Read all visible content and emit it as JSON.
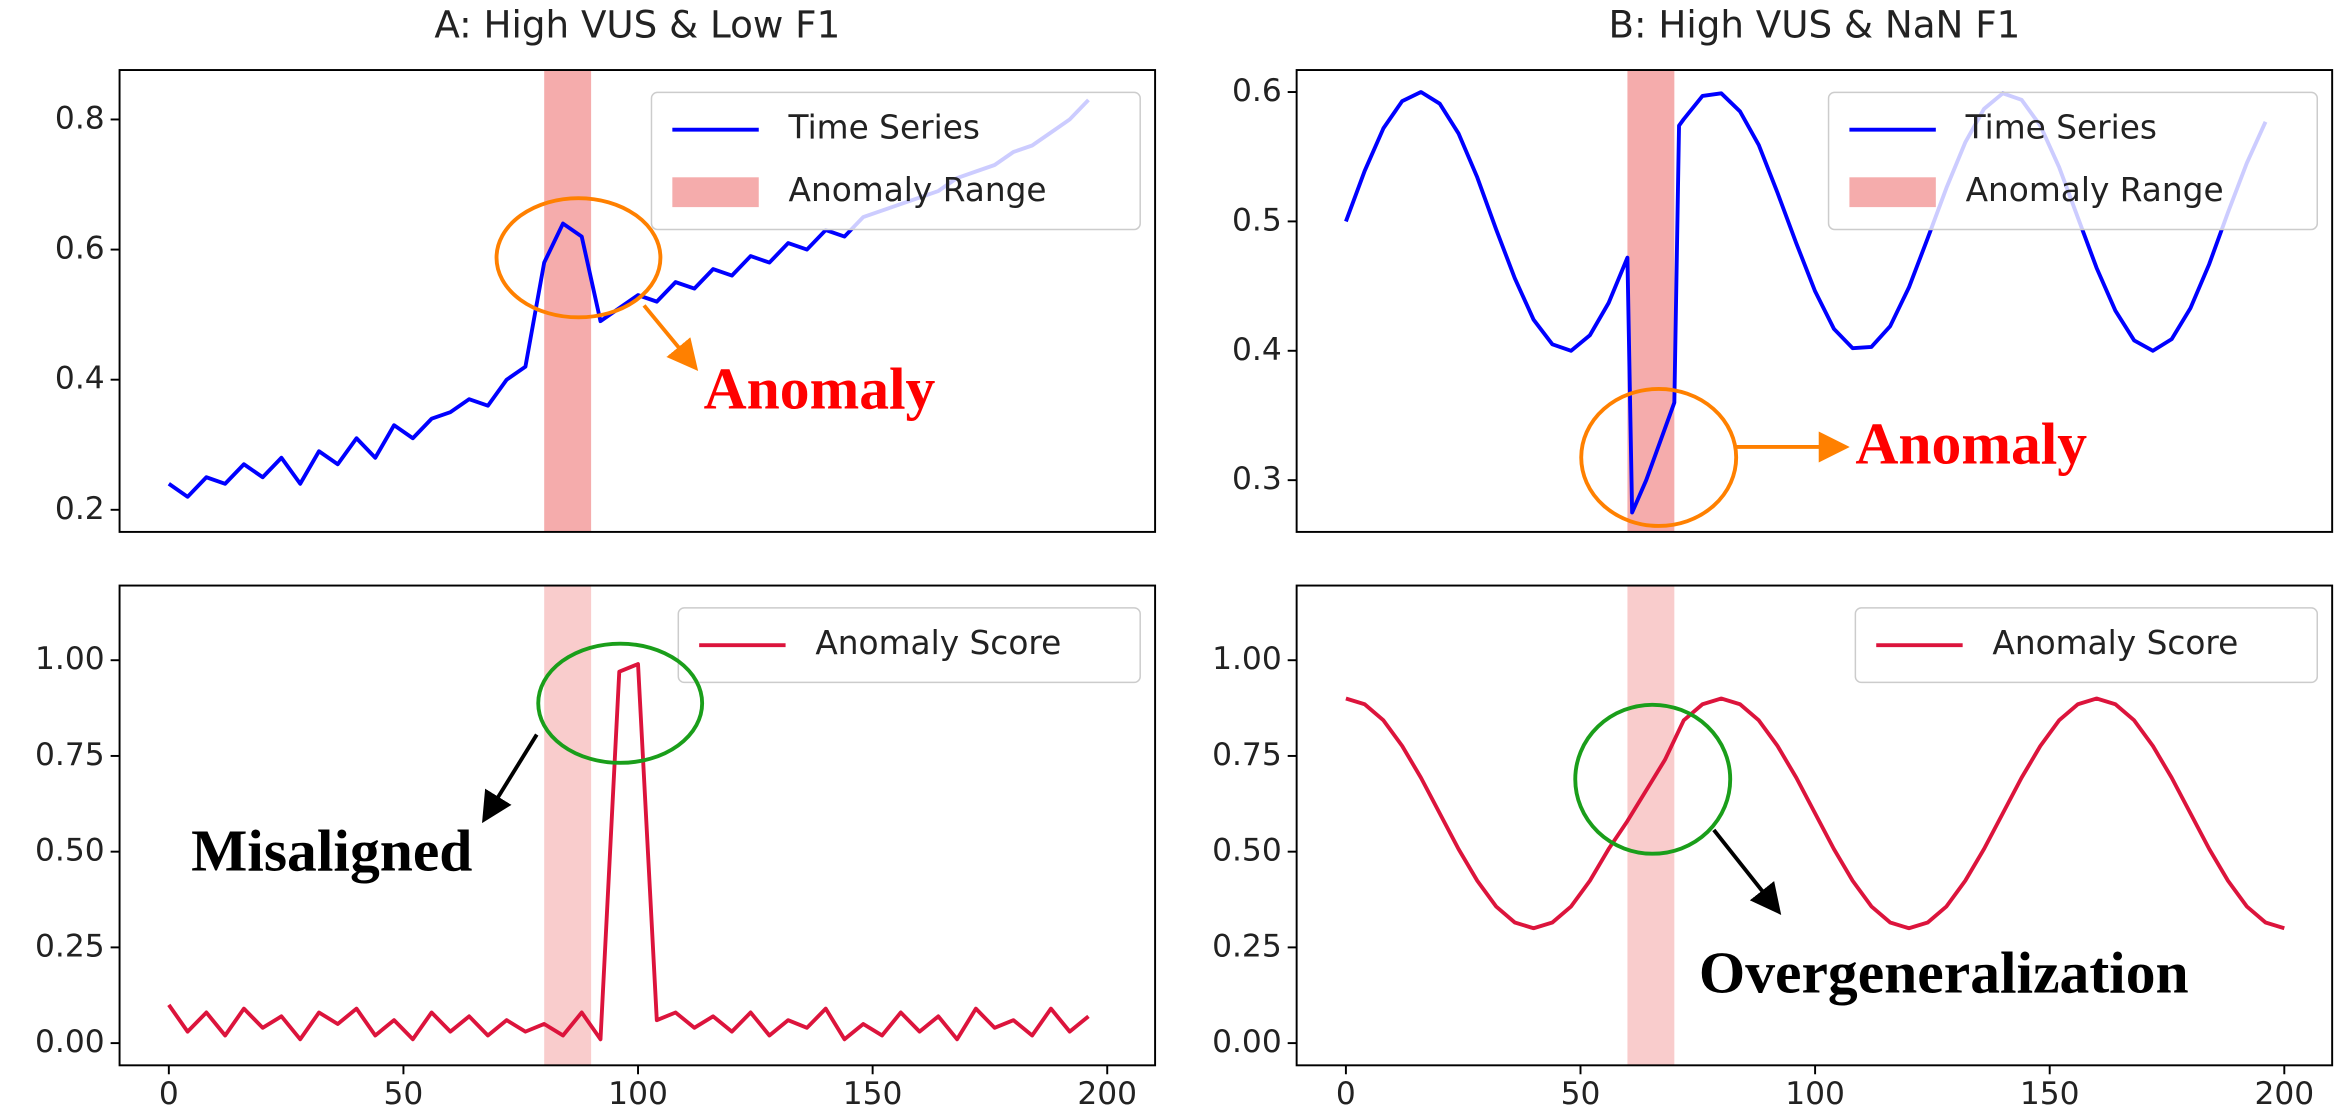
{
  "chart_data": [
    {
      "type": "line",
      "title": "A: High VUS & Low F1",
      "x": [
        0,
        4,
        8,
        12,
        16,
        20,
        24,
        28,
        32,
        36,
        40,
        44,
        48,
        52,
        56,
        60,
        64,
        68,
        72,
        76,
        80,
        84,
        88,
        92,
        96,
        100,
        104,
        108,
        112,
        116,
        120,
        124,
        128,
        132,
        136,
        140,
        144,
        148,
        152,
        156,
        160,
        164,
        168,
        172,
        176,
        180,
        184,
        188,
        192,
        196
      ],
      "series": [
        {
          "name": "Time Series",
          "color": "#0000ff",
          "values": [
            0.24,
            0.22,
            0.25,
            0.24,
            0.27,
            0.25,
            0.28,
            0.24,
            0.29,
            0.27,
            0.31,
            0.28,
            0.33,
            0.31,
            0.34,
            0.35,
            0.37,
            0.36,
            0.4,
            0.42,
            0.58,
            0.64,
            0.62,
            0.49,
            0.51,
            0.53,
            0.52,
            0.55,
            0.54,
            0.57,
            0.56,
            0.59,
            0.58,
            0.61,
            0.6,
            0.63,
            0.62,
            0.65,
            0.66,
            0.67,
            0.68,
            0.69,
            0.71,
            0.72,
            0.73,
            0.75,
            0.76,
            0.78,
            0.8,
            0.83
          ]
        }
      ],
      "span": {
        "name": "Anomaly Range",
        "x": [
          80,
          90
        ],
        "color": "#f08080",
        "alpha": 0.65
      },
      "xlim": [
        -10.5,
        210.2
      ],
      "ylim": [
        0.166,
        0.876
      ],
      "yticks": [
        0.2,
        0.4,
        0.6,
        0.8
      ],
      "legend": "upper right",
      "annotation": "Anomaly"
    },
    {
      "type": "line",
      "title": "B: High VUS & NaN F1",
      "x": [
        0,
        4,
        8,
        12,
        16,
        20,
        24,
        28,
        32,
        36,
        40,
        44,
        48,
        52,
        56,
        60,
        61,
        64,
        68,
        70,
        71,
        72,
        76,
        80,
        84,
        88,
        92,
        96,
        100,
        104,
        108,
        112,
        116,
        120,
        124,
        128,
        132,
        136,
        140,
        144,
        148,
        152,
        156,
        160,
        164,
        168,
        172,
        176,
        180,
        184,
        188,
        192,
        196
      ],
      "series": [
        {
          "name": "Time Series",
          "color": "#0000ff",
          "values": [
            0.5,
            0.539,
            0.572,
            0.593,
            0.6,
            0.591,
            0.568,
            0.534,
            0.494,
            0.456,
            0.424,
            0.405,
            0.4,
            0.412,
            0.437,
            0.472,
            0.275,
            0.3,
            0.34,
            0.36,
            0.574,
            0.579,
            0.597,
            0.599,
            0.585,
            0.559,
            0.522,
            0.483,
            0.446,
            0.417,
            0.402,
            0.403,
            0.419,
            0.449,
            0.487,
            0.526,
            0.561,
            0.587,
            0.599,
            0.594,
            0.574,
            0.542,
            0.503,
            0.464,
            0.431,
            0.408,
            0.4,
            0.409,
            0.433,
            0.467,
            0.507,
            0.545,
            0.577
          ]
        }
      ],
      "span": {
        "name": "Anomaly Range",
        "x": [
          60,
          70
        ],
        "color": "#f08080",
        "alpha": 0.65
      },
      "xlim": [
        -10.5,
        210.2
      ],
      "ylim": [
        0.26,
        0.617
      ],
      "yticks": [
        0.3,
        0.4,
        0.5,
        0.6
      ],
      "legend": "upper right",
      "annotation": "Anomaly"
    },
    {
      "type": "line",
      "x": [
        0,
        4,
        8,
        12,
        16,
        20,
        24,
        28,
        32,
        36,
        40,
        44,
        48,
        52,
        56,
        60,
        64,
        68,
        72,
        76,
        80,
        84,
        88,
        92,
        96,
        100,
        104,
        108,
        112,
        116,
        120,
        124,
        128,
        132,
        136,
        140,
        144,
        148,
        152,
        156,
        160,
        164,
        168,
        172,
        176,
        180,
        184,
        188,
        192,
        196
      ],
      "series": [
        {
          "name": "Anomaly Score",
          "color": "#dc143c",
          "values": [
            0.1,
            0.03,
            0.08,
            0.02,
            0.09,
            0.04,
            0.07,
            0.01,
            0.08,
            0.05,
            0.09,
            0.02,
            0.06,
            0.01,
            0.08,
            0.03,
            0.07,
            0.02,
            0.06,
            0.03,
            0.05,
            0.02,
            0.08,
            0.01,
            0.97,
            0.99,
            0.06,
            0.08,
            0.04,
            0.07,
            0.03,
            0.08,
            0.02,
            0.06,
            0.04,
            0.09,
            0.01,
            0.05,
            0.02,
            0.08,
            0.03,
            0.07,
            0.01,
            0.09,
            0.04,
            0.06,
            0.02,
            0.09,
            0.03,
            0.07
          ]
        }
      ],
      "span": {
        "x": [
          80,
          90
        ],
        "color": "#f08080",
        "alpha": 0.4
      },
      "xlim": [
        -10.5,
        210.2
      ],
      "ylim": [
        -0.058,
        1.195
      ],
      "xticks": [
        0,
        50,
        100,
        150,
        200
      ],
      "yticks": [
        {
          "value": 0,
          "label": "0.00"
        },
        {
          "value": 0.25,
          "label": "0.25"
        },
        {
          "value": 0.5,
          "label": "0.50"
        },
        {
          "value": 0.75,
          "label": "0.75"
        },
        {
          "value": 1,
          "label": "1.00"
        }
      ],
      "legend": "upper right",
      "annotation": "Misaligned"
    },
    {
      "type": "line",
      "x": [
        0,
        4,
        8,
        12,
        16,
        20,
        24,
        28,
        32,
        36,
        40,
        44,
        48,
        52,
        56,
        60,
        64,
        68,
        72,
        76,
        80,
        84,
        88,
        92,
        96,
        100,
        104,
        108,
        112,
        116,
        120,
        124,
        128,
        132,
        136,
        140,
        144,
        148,
        152,
        156,
        160,
        164,
        168,
        172,
        176,
        180,
        184,
        188,
        192,
        196,
        200
      ],
      "series": [
        {
          "name": "Anomaly Score",
          "color": "#dc143c",
          "values": [
            0.9,
            0.885,
            0.843,
            0.776,
            0.693,
            0.6,
            0.507,
            0.424,
            0.357,
            0.315,
            0.3,
            0.315,
            0.357,
            0.424,
            0.507,
            0.58,
            0.66,
            0.74,
            0.843,
            0.885,
            0.9,
            0.885,
            0.843,
            0.776,
            0.693,
            0.6,
            0.507,
            0.424,
            0.357,
            0.315,
            0.3,
            0.315,
            0.357,
            0.424,
            0.507,
            0.6,
            0.693,
            0.776,
            0.843,
            0.885,
            0.9,
            0.885,
            0.843,
            0.776,
            0.693,
            0.6,
            0.507,
            0.424,
            0.357,
            0.315,
            0.3
          ]
        }
      ],
      "span": {
        "x": [
          60,
          70
        ],
        "color": "#f08080",
        "alpha": 0.4
      },
      "xlim": [
        -10.5,
        210.2
      ],
      "ylim": [
        -0.058,
        1.195
      ],
      "xticks": [
        0,
        50,
        100,
        150,
        200
      ],
      "yticks": [
        {
          "value": 0,
          "label": "0.00"
        },
        {
          "value": 0.25,
          "label": "0.25"
        },
        {
          "value": 0.5,
          "label": "0.50"
        },
        {
          "value": 0.75,
          "label": "0.75"
        },
        {
          "value": 1,
          "label": "1.00"
        }
      ],
      "legend": "upper right",
      "annotation": "Overgeneralization"
    }
  ]
}
